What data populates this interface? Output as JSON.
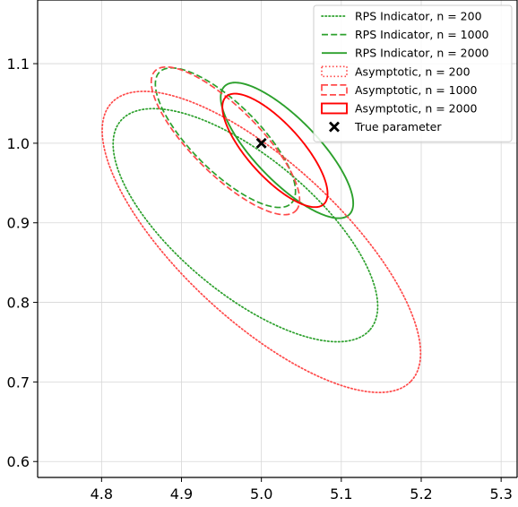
{
  "chart_data": {
    "type": "line",
    "title": "",
    "xlabel": "",
    "ylabel": "",
    "xlim": [
      4.72,
      5.32
    ],
    "ylim": [
      0.58,
      1.18
    ],
    "xticks": [
      4.8,
      4.9,
      5.0,
      5.1,
      5.2,
      5.3
    ],
    "yticks": [
      0.6,
      0.7,
      0.8,
      0.9,
      1.0,
      1.1
    ],
    "grid": true,
    "legend_position": "top-right",
    "series": [
      {
        "name": "RPS Indicator, n = 200",
        "color": "#2ca02c",
        "style": "dotted",
        "ellipse": {
          "center": [
            4.98,
            0.897
          ],
          "semi_major": 0.2039,
          "semi_minor": 0.0854,
          "angle_deg": -40
        }
      },
      {
        "name": "RPS Indicator, n = 1000",
        "color": "#2ca02c",
        "style": "dashed",
        "ellipse": {
          "center": [
            4.955,
            1.007
          ],
          "semi_major": 0.1166,
          "semi_minor": 0.0422,
          "angle_deg": -45
        }
      },
      {
        "name": "RPS Indicator, n = 2000",
        "color": "#2ca02c",
        "style": "solid",
        "ellipse": {
          "center": [
            5.032,
            0.991
          ],
          "semi_major": 0.1122,
          "semi_minor": 0.0393,
          "angle_deg": -46
        }
      },
      {
        "name": "Asymptotic, n = 200",
        "color": "#ff4a4a",
        "style": "dotted",
        "ellipse": {
          "center": [
            5.0,
            0.876
          ],
          "semi_major": 0.2563,
          "semi_minor": 0.099,
          "angle_deg": -43
        }
      },
      {
        "name": "Asymptotic, n = 1000",
        "color": "#ff4a4a",
        "style": "dashed",
        "ellipse": {
          "center": [
            4.955,
            1.003
          ],
          "semi_major": 0.1244,
          "semi_minor": 0.0419,
          "angle_deg": -45
        }
      },
      {
        "name": "Asymptotic, n = 2000",
        "color": "#ff0000",
        "style": "solid",
        "ellipse": {
          "center": [
            5.017,
            0.991
          ],
          "semi_major": 0.0911,
          "semi_minor": 0.0334,
          "angle_deg": -48
        }
      }
    ],
    "points": [
      {
        "name": "True parameter",
        "x": 5.0,
        "y": 1.0,
        "marker": "x",
        "color": "#000000"
      }
    ]
  }
}
